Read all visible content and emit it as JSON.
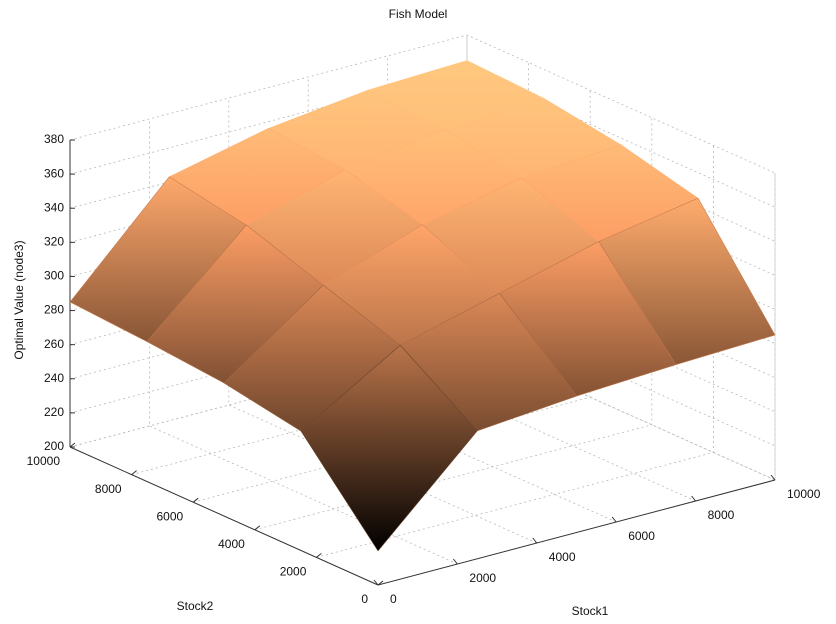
{
  "chart_data": {
    "type": "surface",
    "title": "Fish Model",
    "x_label": "Stock1",
    "y_label": "Stock2",
    "z_label": "Optimal Value (node3)",
    "x": [
      0,
      2500,
      5000,
      7500,
      10000
    ],
    "y": [
      0,
      2500,
      5000,
      7500,
      10000
    ],
    "z": [
      [
        220,
        275,
        280,
        283,
        285
      ],
      [
        270,
        305,
        320,
        335,
        345
      ],
      [
        278,
        320,
        340,
        352,
        356
      ],
      [
        282,
        335,
        352,
        360,
        363
      ],
      [
        285,
        343,
        356,
        363,
        365
      ]
    ],
    "xlim": [
      0,
      10000
    ],
    "ylim": [
      0,
      10000
    ],
    "zlim": [
      200,
      380
    ],
    "xticks": [
      0,
      2000,
      4000,
      6000,
      8000,
      10000
    ],
    "yticks": [
      0,
      2000,
      4000,
      6000,
      8000,
      10000
    ],
    "zticks": [
      200,
      220,
      240,
      260,
      280,
      300,
      320,
      340,
      360,
      380
    ],
    "grid": true,
    "colormap": "copper"
  }
}
